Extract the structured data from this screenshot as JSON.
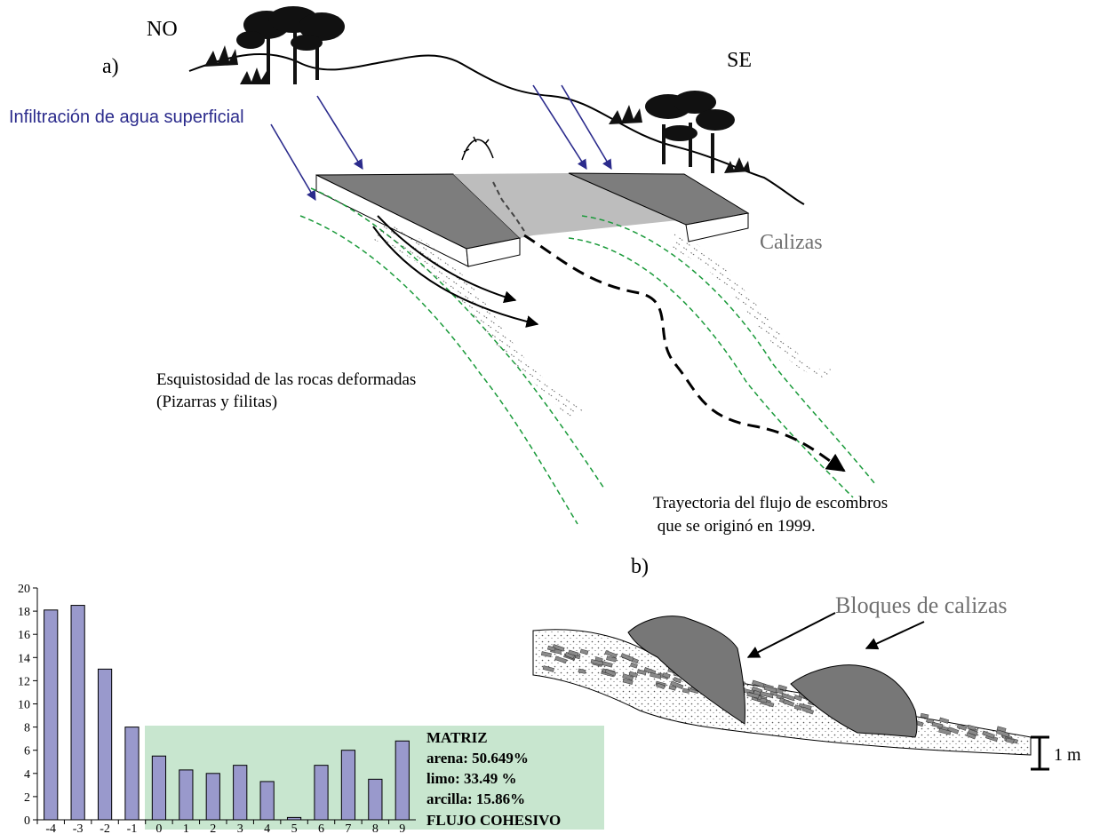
{
  "panel_a": {
    "label": "a)",
    "nw": "NO",
    "se": "SE",
    "infiltration": "Infiltración de agua superficial",
    "limestone": "Calizas",
    "schistosity_line1": "Esquistosidad de las rocas deformadas",
    "schistosity_line2": "(Pizarras y filitas)",
    "trajectory_line1": "Trayectoria del flujo de escombros",
    "trajectory_line2": " que se originó en 1999."
  },
  "panel_b": {
    "label": "b)",
    "blocks": "Bloques de calizas",
    "scale": "1 m"
  },
  "matrix_box": {
    "title": "MATRIZ",
    "sand": "arena: 50.649%",
    "silt": "limo: 33.49 %",
    "clay": "arcilla: 15.86%",
    "flow": "FLUJO COHESIVO"
  },
  "colors": {
    "bar": "#9999cc",
    "matrix_bg": "#c8e6cf",
    "arrow_blue": "#2b2b8c",
    "dashed_green": "#1a9a3a",
    "rock_gray": "#7a7a7a",
    "label_gray": "#707070"
  },
  "chart_data": {
    "type": "bar",
    "categories": [
      "-4",
      "-3",
      "-2",
      "-1",
      "0",
      "1",
      "2",
      "3",
      "4",
      "5",
      "6",
      "7",
      "8",
      "9"
    ],
    "values": [
      18.1,
      18.5,
      13.0,
      8.0,
      5.5,
      4.3,
      4.0,
      4.7,
      3.3,
      0.2,
      4.7,
      6.0,
      3.5,
      6.8
    ],
    "yticks": [
      "0",
      "2",
      "4",
      "6",
      "8",
      "10",
      "12",
      "14",
      "16",
      "18",
      "20"
    ],
    "ylim": [
      0,
      20
    ],
    "title": "",
    "xlabel": "",
    "ylabel": ""
  }
}
